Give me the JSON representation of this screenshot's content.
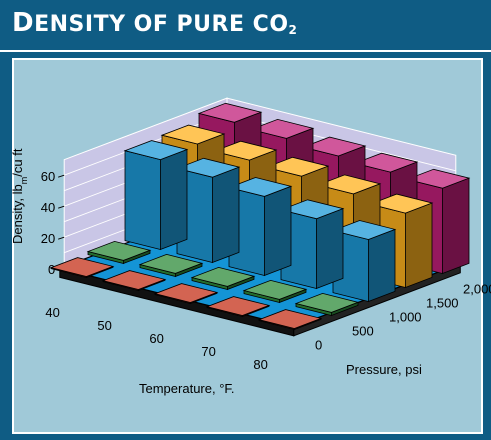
{
  "header": {
    "title_lead": "D",
    "title_main": "ENSITY OF PURE CO",
    "title_sub": "2"
  },
  "chart_data": {
    "type": "bar",
    "title": "Density of pure CO2",
    "zlabel": "Density, lbm/cu ft",
    "zlabel_main": "Density, lb",
    "zlabel_sub": "m",
    "zlabel_tail": "/cu ft",
    "xlabel": "Temperature, °F.",
    "ylabel": "Pressure, psi",
    "x": [
      40,
      50,
      60,
      70,
      80
    ],
    "y": [
      0,
      500,
      1000,
      1500,
      2000
    ],
    "y_tick_labels": [
      "0",
      "500",
      "1,000",
      "1,500",
      "2,000"
    ],
    "z_ticks": [
      0,
      20,
      40,
      60
    ],
    "zlim": [
      0,
      70
    ],
    "grid": true,
    "series": [
      {
        "values": [
          0,
          0,
          0,
          0,
          0
        ],
        "color": "#c43018"
      },
      {
        "values": [
          2,
          2,
          2,
          2,
          2
        ],
        "color": "#2e8b3a"
      },
      {
        "values": [
          58,
          55,
          51,
          45,
          40
        ],
        "color": "#1e9ad8"
      },
      {
        "values": [
          59,
          57,
          55,
          52,
          48
        ],
        "color": "#ffb21e"
      },
      {
        "values": [
          64,
          62,
          59,
          57,
          55
        ],
        "color": "#c01f7a"
      }
    ],
    "colors": {
      "floor": "#1494d6",
      "floor_edge": "#000000",
      "wall": "#c9c6e6",
      "panel": "#a0c9d8",
      "header": "#0f5c84"
    }
  }
}
